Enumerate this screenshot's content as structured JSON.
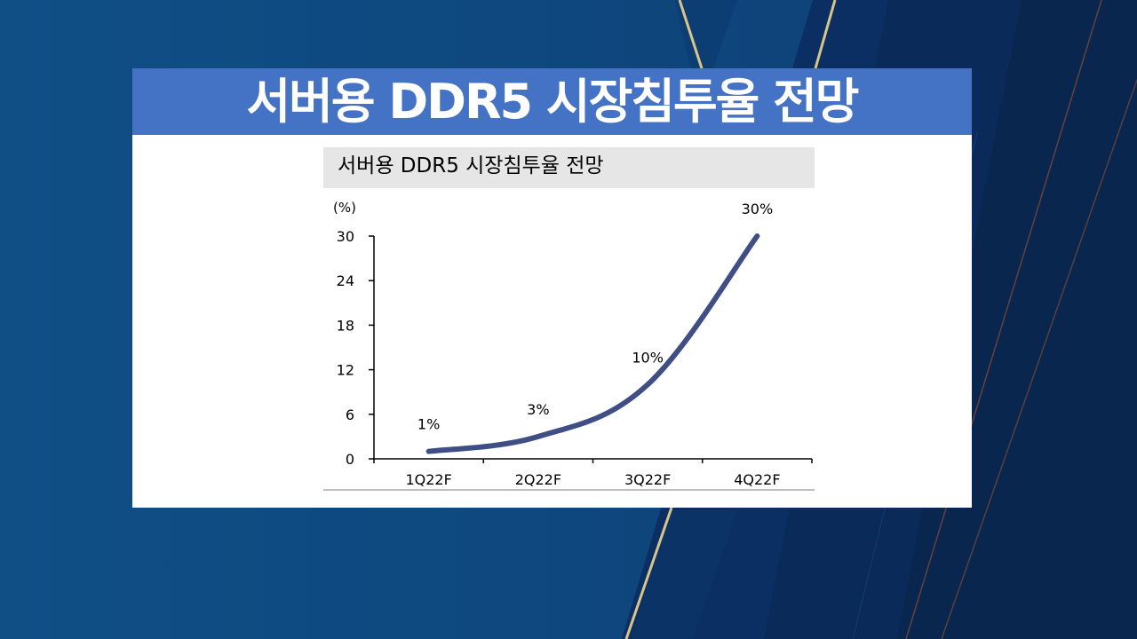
{
  "header": {
    "title": "서버용 DDR5 시장침투율 전망"
  },
  "chart_data": {
    "type": "line",
    "title": "서버용 DDR5 시장침투율 전망",
    "ylabel": "(%)",
    "xlabel": "",
    "categories": [
      "1Q22F",
      "2Q22F",
      "3Q22F",
      "4Q22F"
    ],
    "series": [
      {
        "values": [
          1,
          3,
          10,
          30
        ],
        "data_labels": [
          "1%",
          "3%",
          "10%",
          "30%"
        ]
      }
    ],
    "ylim": [
      0,
      30
    ],
    "yticks": [
      "0",
      "6",
      "12",
      "18",
      "24",
      "30"
    ],
    "smooth": true,
    "grid": false,
    "line_color": "#3f4f86"
  },
  "colors": {
    "banner": "#4472c4",
    "background": "#0f4a80",
    "gold_line": "#d9c58a"
  }
}
